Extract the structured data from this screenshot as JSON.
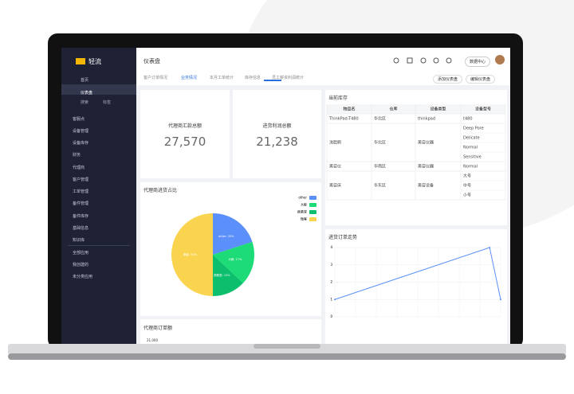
{
  "sidebar": {
    "logo": "轻流",
    "search": "搜索",
    "tag": "标签",
    "menu": [
      "首页",
      "仪表盘",
      "客服点",
      "设备管理",
      "设备库存",
      "财务",
      "代理商",
      "客户管理",
      "工单管理",
      "备件管理",
      "备件库存",
      "基础信息",
      "知识库"
    ],
    "apps": [
      "全部应用",
      "我创建的",
      "未分类应用"
    ]
  },
  "header": {
    "title": "仪表盘",
    "tabs": [
      "客户订单情况",
      "业务情况",
      "本月工单统计",
      "库存信息",
      "员工薪资利润统计"
    ],
    "add_button": "添加仪表盘",
    "edit_button": "编辑仪表盘",
    "data_center": "数据中心"
  },
  "cards": [
    {
      "label": "代理商汇款总额",
      "value": "27,570"
    },
    {
      "label": "进货利润总额",
      "value": "21,238"
    }
  ],
  "table": {
    "title": "当前库存",
    "headers": [
      "物品名",
      "仓库",
      "设备类型",
      "设备型号"
    ],
    "rows": [
      {
        "item": "ThinkPad-T480",
        "warehouse": "华北区",
        "type": "thinkpad",
        "models": [
          "t480"
        ]
      },
      {
        "item": "洗脸刷",
        "warehouse": "华北区",
        "type": "美容仪器",
        "models": [
          "Deep Pore",
          "Delicate",
          "Normal",
          "Sensitive"
        ]
      },
      {
        "item": "美容仪",
        "warehouse": "华南区",
        "type": "美容仪器",
        "models": [
          "Normal"
        ]
      },
      {
        "item": "美容床",
        "warehouse": "华东区",
        "type": "美容设备",
        "models": [
          "大号",
          "中号",
          "小号"
        ]
      }
    ]
  },
  "bottom_card": {
    "title": "代理商订单额",
    "axis_label": "21,000"
  },
  "chart_data": [
    {
      "type": "pie",
      "title": "代理商进货占比",
      "categories": [
        "other",
        "大鲸",
        "颜素堂",
        "微客"
      ],
      "values": [
        20,
        17,
        13,
        50
      ],
      "value_labels": [
        "other: 20%",
        "大鲸: 17%",
        "颜素堂: 13%",
        "微客: 50%"
      ],
      "colors": [
        "#5b8ff9",
        "#1ddb77",
        "#0bbf6c",
        "#fbd44f"
      ]
    },
    {
      "type": "line",
      "title": "进货订单走势",
      "x": [
        0,
        8.4,
        9
      ],
      "xlim": [
        0,
        9
      ],
      "values": [
        1,
        4,
        1
      ],
      "ylim": [
        0,
        4
      ],
      "yticks": [
        0,
        1,
        2,
        3,
        4
      ],
      "color": "#5b8ff9",
      "grid": true
    }
  ]
}
